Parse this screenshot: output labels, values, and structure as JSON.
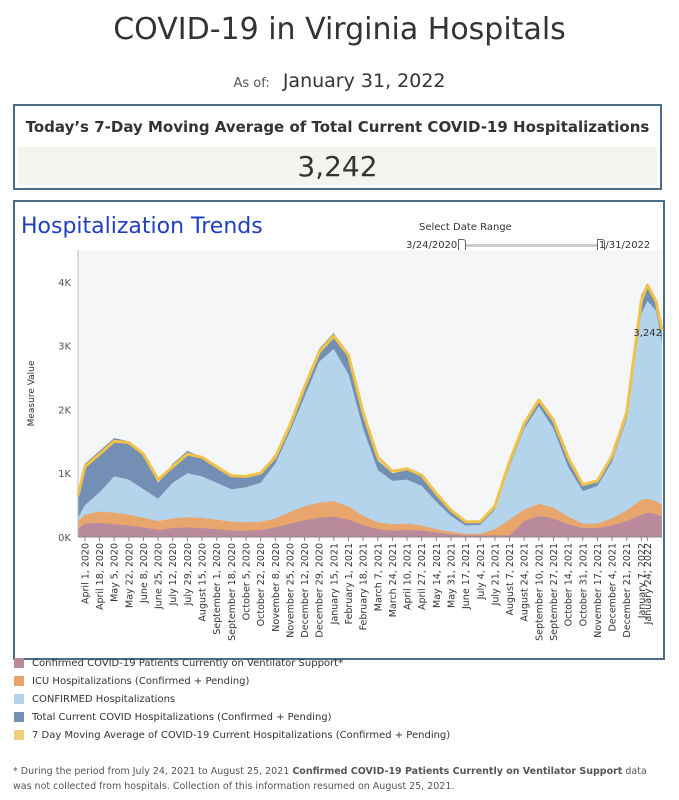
{
  "header": {
    "title": "COVID-19 in Virginia Hospitals",
    "as_of_label": "As of:",
    "as_of_date": "January 31, 2022"
  },
  "kpi": {
    "label": "Today’s 7-Day Moving Average of Total Current COVID-19 Hospitalizations",
    "value": "3,242"
  },
  "trends": {
    "title": "Hospitalization Trends",
    "date_range": {
      "label": "Select Date Range",
      "start": "3/24/2020",
      "end": "1/31/2022"
    }
  },
  "legend": [
    {
      "label": "Confirmed COVID-19 Patients Currently on Ventilator Support*",
      "color": "#b88a9c"
    },
    {
      "label": "ICU Hospitalizations (Confirmed + Pending)",
      "color": "#e8a66d"
    },
    {
      "label": "CONFIRMED Hospitalizations",
      "color": "#b3d4ea"
    },
    {
      "label": "Total Current COVID Hospitalizations (Confirmed + Pending)",
      "color": "#7390b4"
    },
    {
      "label": "7 Day Moving Average of COVID-19 Current Hospitalizations (Confirmed + Pending)",
      "color": "#f0d080"
    }
  ],
  "footnote": {
    "part1": "* During the period from July 24, 2021 to August 25, 2021 ",
    "bold": "Confirmed COVID-19 Patients Currently on Ventilator Support",
    "part2": " data was not collected from hospitals. Collection of this information resumed on August 25, 2021."
  },
  "chart_data": {
    "type": "area",
    "ylabel": "Measure Value",
    "ylim": [
      0,
      4500
    ],
    "yticks": [
      {
        "value": 0,
        "label": "0K"
      },
      {
        "value": 1000,
        "label": "1K"
      },
      {
        "value": 2000,
        "label": "2K"
      },
      {
        "value": 3000,
        "label": "3K"
      },
      {
        "value": 4000,
        "label": "4K"
      }
    ],
    "x_tick_labels": [
      "April 1, 2020",
      "April 18, 2020",
      "May 5, 2020",
      "May 22, 2020",
      "June 8, 2020",
      "June 25, 2020",
      "July 12, 2020",
      "July 29, 2020",
      "August 15, 2020",
      "September 1, 2020",
      "September 18, 2020",
      "October 5, 2020",
      "October 22, 2020",
      "November 8, 2020",
      "November 25, 2020",
      "December 12, 2020",
      "December 29, 2020",
      "January 15, 2021",
      "February 1, 2021",
      "February 18, 2021",
      "March 7, 2021",
      "March 24, 2021",
      "April 10, 2021",
      "April 27, 2021",
      "May 14, 2021",
      "May 31, 2021",
      "June 17, 2021",
      "July 4, 2021",
      "July 21, 2021",
      "August 7, 2021",
      "August 24, 2021",
      "September 10, 2021",
      "September 27, 2021",
      "October 14, 2021",
      "October 31, 2021",
      "November 17, 2021",
      "December 4, 2021",
      "December 21, 2021",
      "January 7, 2022",
      "January 24, 2022"
    ],
    "x_dates": [
      "2020-03-24",
      "2020-04-01",
      "2020-04-18",
      "2020-05-05",
      "2020-05-22",
      "2020-06-08",
      "2020-06-25",
      "2020-07-12",
      "2020-07-29",
      "2020-08-15",
      "2020-09-01",
      "2020-09-18",
      "2020-10-05",
      "2020-10-22",
      "2020-11-08",
      "2020-11-25",
      "2020-12-12",
      "2020-12-29",
      "2021-01-15",
      "2021-02-01",
      "2021-02-18",
      "2021-03-07",
      "2021-03-24",
      "2021-04-10",
      "2021-04-27",
      "2021-05-14",
      "2021-05-31",
      "2021-06-17",
      "2021-07-04",
      "2021-07-21",
      "2021-08-07",
      "2021-08-24",
      "2021-09-10",
      "2021-09-27",
      "2021-10-14",
      "2021-10-31",
      "2021-11-17",
      "2021-12-04",
      "2021-12-21",
      "2022-01-07",
      "2022-01-14",
      "2022-01-24",
      "2022-01-31"
    ],
    "series": [
      {
        "name": "Total Current COVID Hospitalizations (Confirmed + Pending)",
        "color": "#7390b4",
        "values": [
          700,
          1150,
          1350,
          1550,
          1500,
          1300,
          850,
          1150,
          1350,
          1250,
          1100,
          950,
          950,
          1000,
          1300,
          1800,
          2400,
          2950,
          3200,
          2800,
          1900,
          1200,
          1000,
          1050,
          950,
          650,
          400,
          220,
          230,
          500,
          1200,
          1800,
          2150,
          1800,
          1200,
          800,
          900,
          1300,
          2000,
          3800,
          3950,
          3700,
          3200
        ]
      },
      {
        "name": "CONFIRMED Hospitalizations",
        "color": "#b3d4ea",
        "values": [
          300,
          500,
          700,
          950,
          900,
          750,
          600,
          850,
          1000,
          950,
          850,
          750,
          780,
          850,
          1150,
          1650,
          2200,
          2750,
          2950,
          2550,
          1700,
          1050,
          880,
          900,
          800,
          550,
          330,
          180,
          190,
          430,
          1100,
          1700,
          2050,
          1700,
          1100,
          720,
          800,
          1180,
          1850,
          3500,
          3700,
          3550,
          3050
        ]
      },
      {
        "name": "ICU Hospitalizations (Confirmed + Pending)",
        "color": "#e8a66d",
        "values": [
          250,
          350,
          400,
          380,
          350,
          300,
          250,
          290,
          310,
          300,
          270,
          240,
          230,
          240,
          290,
          390,
          480,
          540,
          560,
          480,
          330,
          230,
          200,
          210,
          180,
          120,
          80,
          50,
          50,
          120,
          270,
          430,
          520,
          460,
          320,
          210,
          210,
          290,
          420,
          580,
          600,
          560,
          500
        ]
      },
      {
        "name": "Confirmed COVID-19 Patients Currently on Ventilator Support*",
        "color": "#b88a9c",
        "values": [
          130,
          210,
          220,
          200,
          180,
          150,
          110,
          140,
          150,
          140,
          120,
          100,
          100,
          110,
          150,
          210,
          260,
          300,
          320,
          270,
          190,
          120,
          100,
          110,
          100,
          70,
          40,
          25,
          25,
          25,
          25,
          250,
          330,
          290,
          200,
          140,
          140,
          180,
          250,
          350,
          380,
          360,
          320
        ]
      }
    ],
    "moving_average": {
      "name": "7 Day Moving Average of COVID-19 Current Hospitalizations (Confirmed + Pending)",
      "color": "#f0c24a",
      "values": [
        650,
        1100,
        1300,
        1500,
        1480,
        1300,
        900,
        1100,
        1300,
        1250,
        1100,
        960,
        950,
        1000,
        1250,
        1750,
        2350,
        2900,
        3150,
        2850,
        1950,
        1250,
        1030,
        1070,
        970,
        680,
        420,
        240,
        240,
        480,
        1180,
        1780,
        2150,
        1830,
        1250,
        820,
        880,
        1270,
        1950,
        3700,
        3950,
        3700,
        3242
      ]
    },
    "annotation": {
      "label": "3,242",
      "value": 3242
    },
    "grid": false
  }
}
